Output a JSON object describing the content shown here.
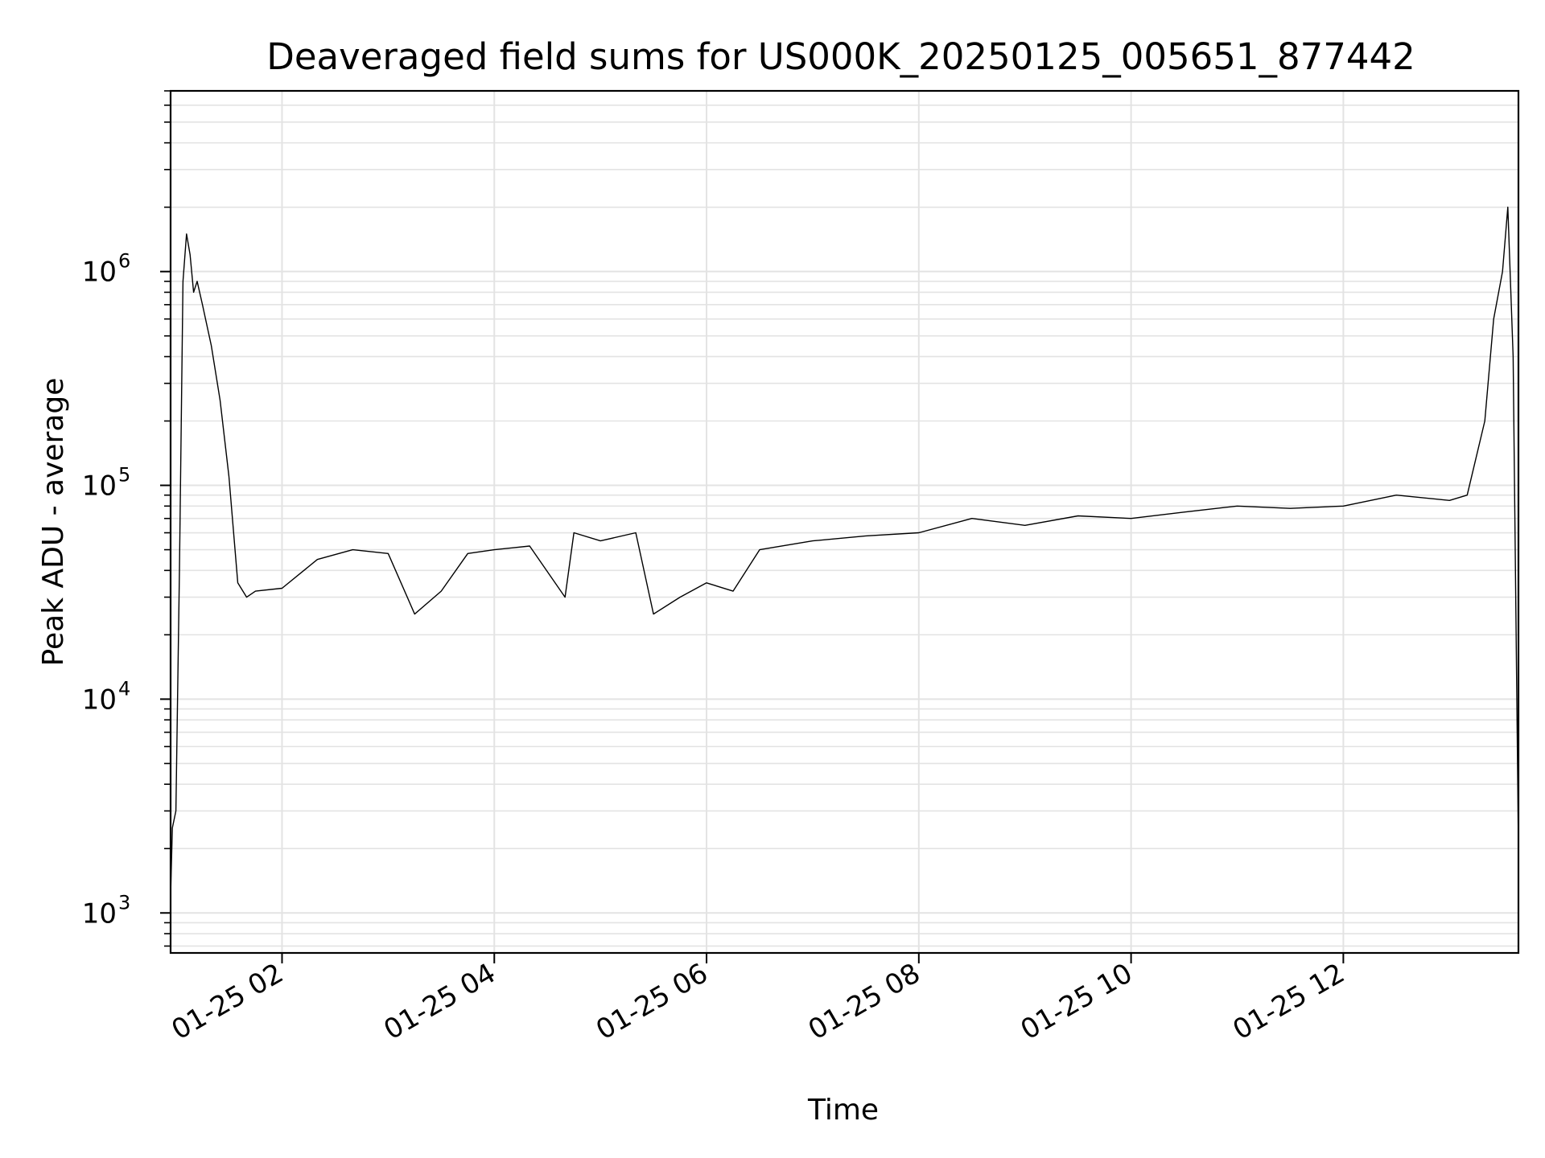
{
  "chart_data": {
    "type": "line",
    "title": "Deaveraged field sums for US000K_20250125_005651_877442",
    "xlabel": "Time",
    "ylabel": "Peak ADU - average",
    "yscale": "log",
    "xlim": [
      "2025-01-25 00:57",
      "2025-01-25 13:39"
    ],
    "ylim": [
      650,
      7000000
    ],
    "grid": true,
    "line_color": "#000000",
    "grid_color": "#e3e3e3",
    "x_ticks": [
      {
        "time": "2025-01-25 02:00",
        "label": "01-25 02"
      },
      {
        "time": "2025-01-25 04:00",
        "label": "01-25 04"
      },
      {
        "time": "2025-01-25 06:00",
        "label": "01-25 06"
      },
      {
        "time": "2025-01-25 08:00",
        "label": "01-25 08"
      },
      {
        "time": "2025-01-25 10:00",
        "label": "01-25 10"
      },
      {
        "time": "2025-01-25 12:00",
        "label": "01-25 12"
      }
    ],
    "y_ticks": [
      {
        "value": 1000,
        "base": "10",
        "exp": "3"
      },
      {
        "value": 10000,
        "base": "10",
        "exp": "4"
      },
      {
        "value": 100000,
        "base": "10",
        "exp": "5"
      },
      {
        "value": 1000000,
        "base": "10",
        "exp": "6"
      }
    ],
    "series": [
      {
        "x": [
          "2025-01-25 00:57",
          "2025-01-25 00:58",
          "2025-01-25 01:00",
          "2025-01-25 01:02",
          "2025-01-25 01:04",
          "2025-01-25 01:06",
          "2025-01-25 01:08",
          "2025-01-25 01:10",
          "2025-01-25 01:12",
          "2025-01-25 01:15",
          "2025-01-25 01:20",
          "2025-01-25 01:25",
          "2025-01-25 01:30",
          "2025-01-25 01:35",
          "2025-01-25 01:40",
          "2025-01-25 01:45",
          "2025-01-25 02:00",
          "2025-01-25 02:20",
          "2025-01-25 02:40",
          "2025-01-25 03:00",
          "2025-01-25 03:15",
          "2025-01-25 03:30",
          "2025-01-25 03:45",
          "2025-01-25 04:00",
          "2025-01-25 04:20",
          "2025-01-25 04:40",
          "2025-01-25 04:45",
          "2025-01-25 05:00",
          "2025-01-25 05:20",
          "2025-01-25 05:30",
          "2025-01-25 05:45",
          "2025-01-25 06:00",
          "2025-01-25 06:15",
          "2025-01-25 06:30",
          "2025-01-25 07:00",
          "2025-01-25 07:30",
          "2025-01-25 08:00",
          "2025-01-25 08:30",
          "2025-01-25 09:00",
          "2025-01-25 09:30",
          "2025-01-25 10:00",
          "2025-01-25 10:30",
          "2025-01-25 11:00",
          "2025-01-25 11:30",
          "2025-01-25 12:00",
          "2025-01-25 12:30",
          "2025-01-25 13:00",
          "2025-01-25 13:10",
          "2025-01-25 13:20",
          "2025-01-25 13:25",
          "2025-01-25 13:30",
          "2025-01-25 13:33",
          "2025-01-25 13:36",
          "2025-01-25 13:39"
        ],
        "y": [
          1200,
          2500,
          3000,
          40000,
          900000,
          1500000,
          1200000,
          800000,
          900000,
          700000,
          450000,
          250000,
          110000,
          35000,
          30000,
          32000,
          33000,
          45000,
          50000,
          48000,
          25000,
          32000,
          48000,
          50000,
          52000,
          30000,
          60000,
          55000,
          60000,
          25000,
          30000,
          35000,
          32000,
          50000,
          55000,
          58000,
          60000,
          70000,
          65000,
          72000,
          70000,
          75000,
          80000,
          78000,
          80000,
          90000,
          85000,
          90000,
          200000,
          600000,
          1000000,
          2000000,
          400000,
          2000
        ]
      }
    ]
  }
}
